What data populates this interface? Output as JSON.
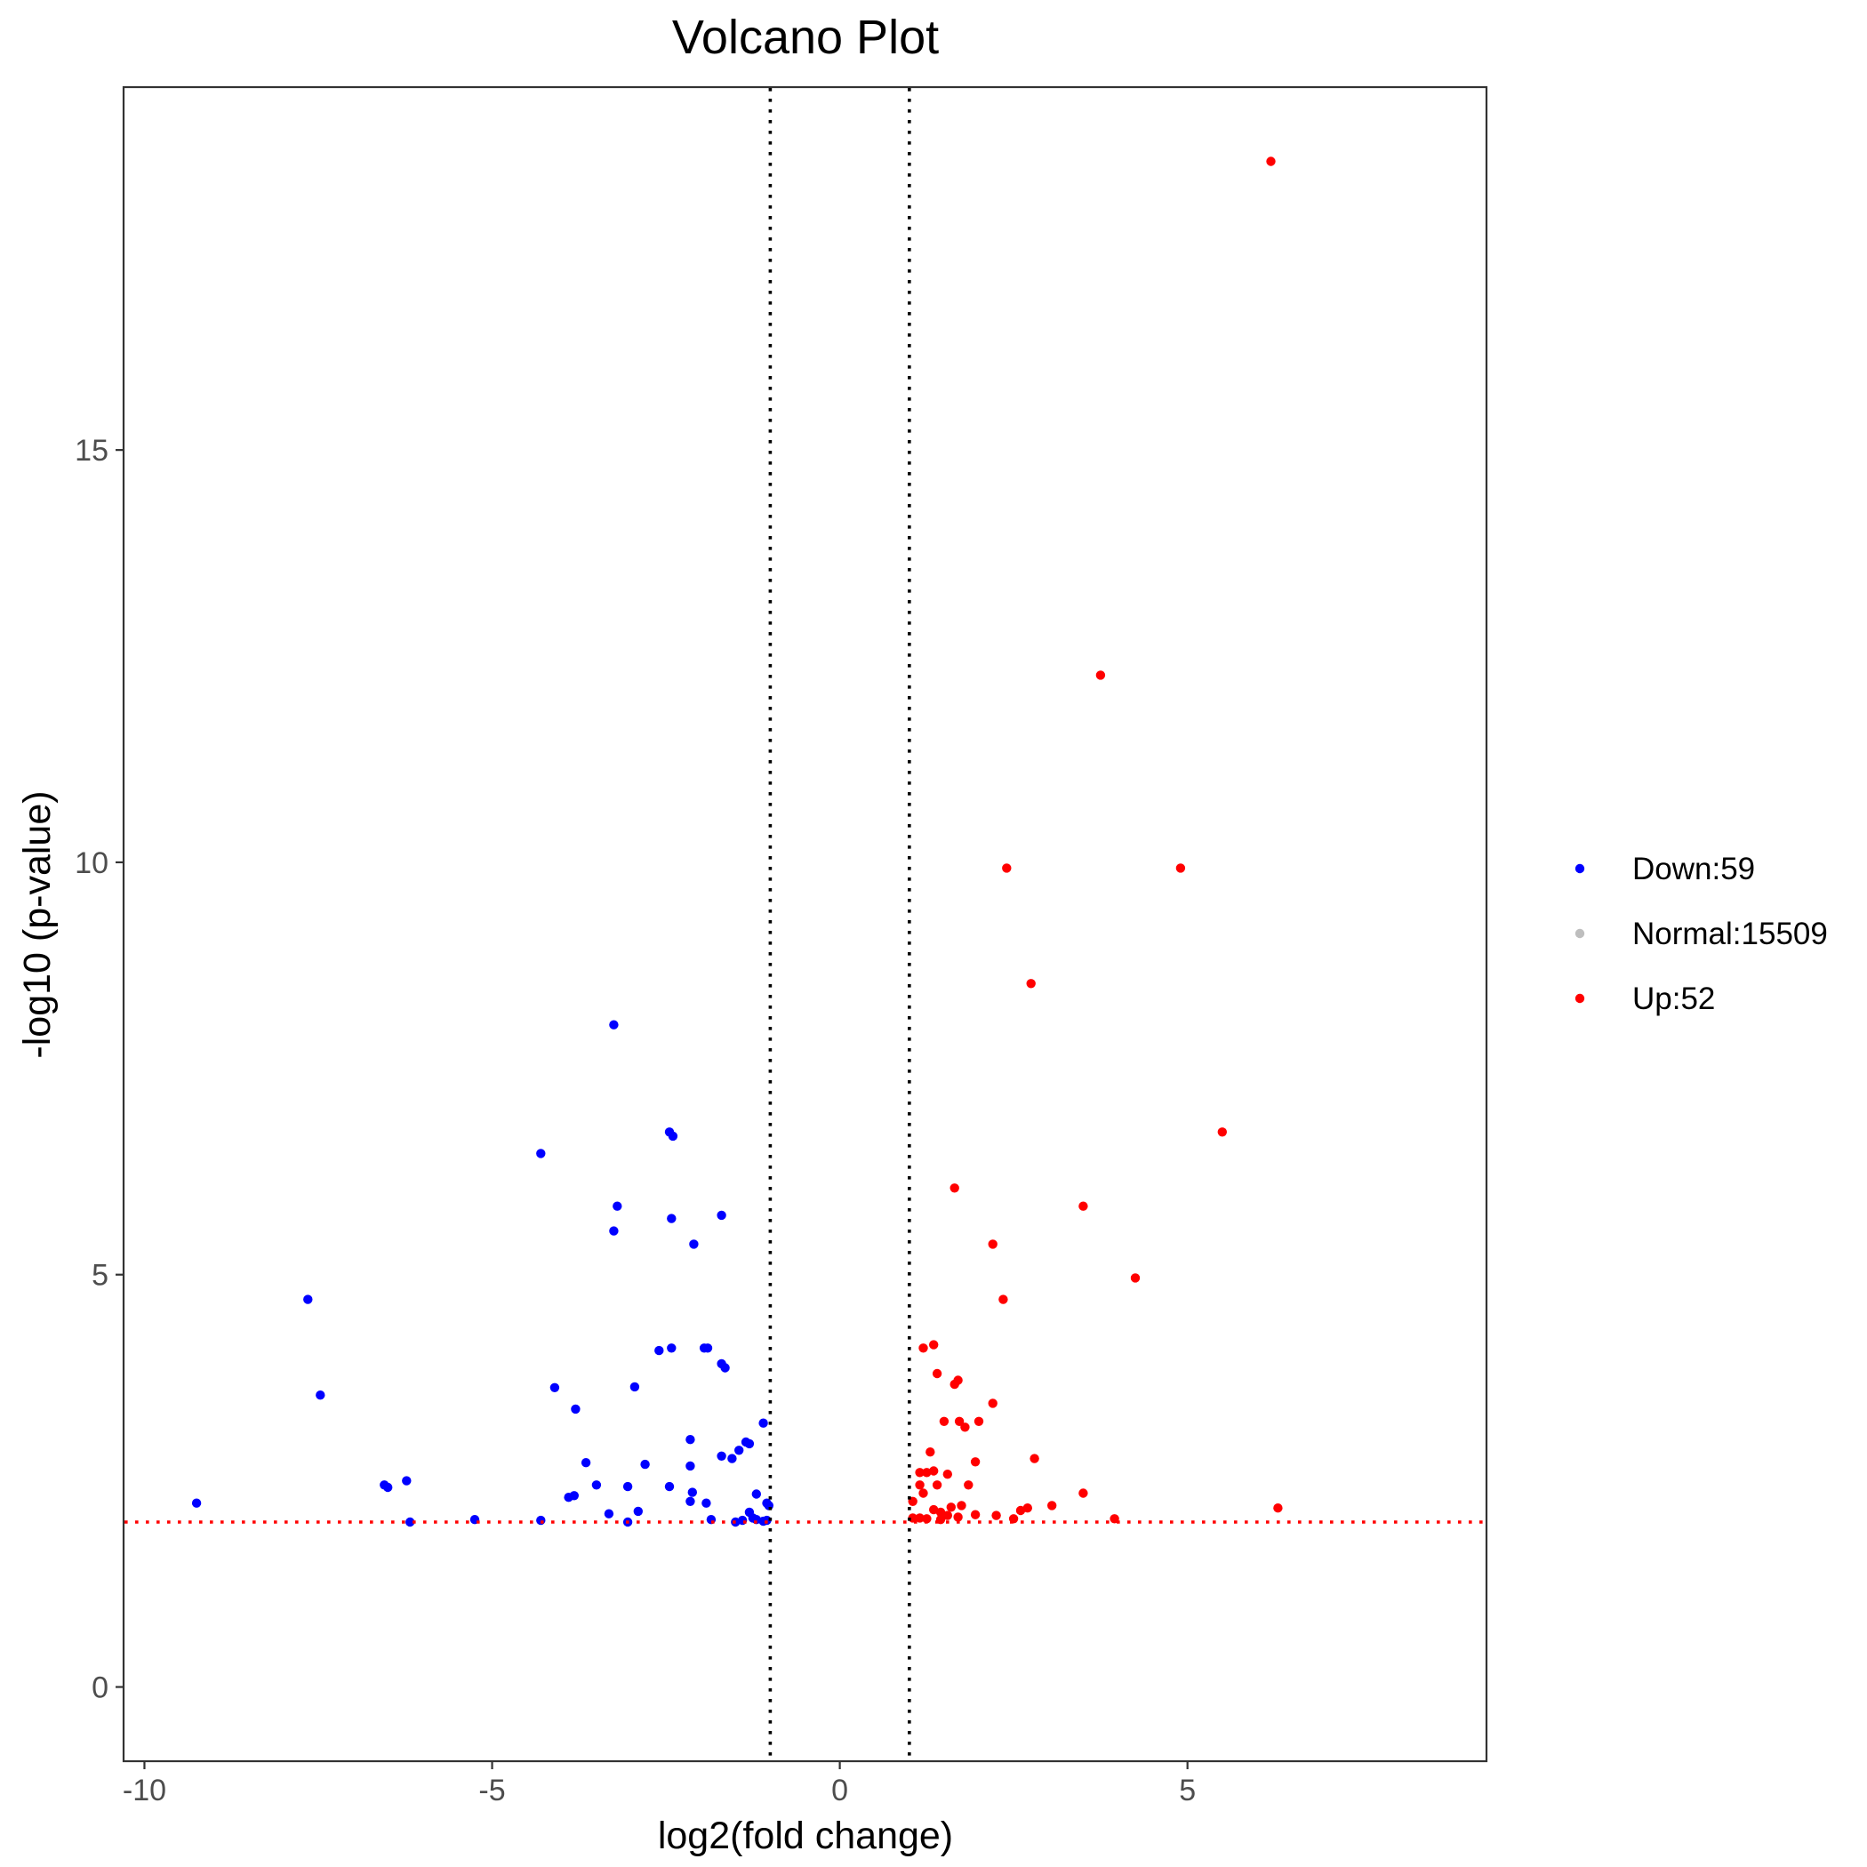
{
  "chart_data": {
    "type": "scatter",
    "title": "Volcano Plot",
    "xlabel": "log2(fold change)",
    "ylabel": "-log10 (p-value)",
    "xlim": [
      -10.3,
      9.3
    ],
    "ylim": [
      -0.9,
      19.4
    ],
    "x_ticks": [
      {
        "value": -10,
        "label": "-10"
      },
      {
        "value": -5,
        "label": "-5"
      },
      {
        "value": 0,
        "label": "0"
      },
      {
        "value": 5,
        "label": "5"
      }
    ],
    "y_ticks": [
      {
        "value": 0,
        "label": "0"
      },
      {
        "value": 5,
        "label": "5"
      },
      {
        "value": 10,
        "label": "10"
      },
      {
        "value": 15,
        "label": "15"
      }
    ],
    "grid": false,
    "legend_position": "right",
    "threshold_lines": {
      "vertical": [
        -1,
        1
      ],
      "vertical_color": "#000000",
      "horizontal": 2,
      "horizontal_color": "#ff0000",
      "style": "dotted"
    },
    "series": [
      {
        "name": "Down",
        "legend_label": "Down:59",
        "color": "#0000ff",
        "points": [
          [
            -9.25,
            2.23
          ],
          [
            -7.65,
            4.7
          ],
          [
            -7.47,
            3.54
          ],
          [
            -6.55,
            2.45
          ],
          [
            -6.5,
            2.42
          ],
          [
            -6.23,
            2.5
          ],
          [
            -6.18,
            2.0
          ],
          [
            -5.25,
            2.03
          ],
          [
            -4.3,
            6.47
          ],
          [
            -4.3,
            2.02
          ],
          [
            -4.1,
            3.63
          ],
          [
            -3.9,
            2.3
          ],
          [
            -3.8,
            3.37
          ],
          [
            -3.82,
            2.32
          ],
          [
            -3.65,
            2.72
          ],
          [
            -3.5,
            2.45
          ],
          [
            -3.32,
            2.1
          ],
          [
            -3.25,
            8.03
          ],
          [
            -3.25,
            5.53
          ],
          [
            -3.2,
            5.83
          ],
          [
            -3.05,
            2.43
          ],
          [
            -3.05,
            2.0
          ],
          [
            -2.95,
            3.64
          ],
          [
            -2.9,
            2.13
          ],
          [
            -2.8,
            2.7
          ],
          [
            -2.6,
            4.08
          ],
          [
            -2.45,
            2.43
          ],
          [
            -2.45,
            6.73
          ],
          [
            -2.4,
            6.68
          ],
          [
            -2.42,
            5.68
          ],
          [
            -2.42,
            4.11
          ],
          [
            -2.15,
            3.0
          ],
          [
            -2.15,
            2.25
          ],
          [
            -2.15,
            2.68
          ],
          [
            -2.12,
            2.36
          ],
          [
            -2.1,
            5.37
          ],
          [
            -1.95,
            4.11
          ],
          [
            -1.9,
            4.11
          ],
          [
            -1.92,
            2.23
          ],
          [
            -1.85,
            2.03
          ],
          [
            -1.7,
            2.8
          ],
          [
            -1.7,
            5.72
          ],
          [
            -1.7,
            3.92
          ],
          [
            -1.65,
            3.87
          ],
          [
            -1.55,
            2.77
          ],
          [
            -1.5,
            2.0
          ],
          [
            -1.45,
            2.87
          ],
          [
            -1.4,
            2.02
          ],
          [
            -1.35,
            2.97
          ],
          [
            -1.3,
            2.95
          ],
          [
            -1.3,
            2.12
          ],
          [
            -1.25,
            2.05
          ],
          [
            -1.2,
            2.34
          ],
          [
            -1.2,
            2.03
          ],
          [
            -1.1,
            3.2
          ],
          [
            -1.1,
            2.01
          ],
          [
            -1.05,
            2.02
          ],
          [
            -1.05,
            2.23
          ],
          [
            -1.02,
            2.2
          ]
        ]
      },
      {
        "name": "Normal",
        "legend_label": "Normal:15509",
        "color": "#bebebe",
        "points": []
      },
      {
        "name": "Up",
        "legend_label": "Up:52",
        "color": "#ff0000",
        "points": [
          [
            6.2,
            18.5
          ],
          [
            3.75,
            12.27
          ],
          [
            2.4,
            9.93
          ],
          [
            4.9,
            9.93
          ],
          [
            2.75,
            8.53
          ],
          [
            5.5,
            6.73
          ],
          [
            1.65,
            6.05
          ],
          [
            3.5,
            5.83
          ],
          [
            2.2,
            5.37
          ],
          [
            4.25,
            4.96
          ],
          [
            2.35,
            4.7
          ],
          [
            1.35,
            4.15
          ],
          [
            1.2,
            4.11
          ],
          [
            1.4,
            3.8
          ],
          [
            1.7,
            3.72
          ],
          [
            1.65,
            3.67
          ],
          [
            2.2,
            3.44
          ],
          [
            1.5,
            3.22
          ],
          [
            1.72,
            3.22
          ],
          [
            1.8,
            3.15
          ],
          [
            2.0,
            3.22
          ],
          [
            1.3,
            2.85
          ],
          [
            2.8,
            2.77
          ],
          [
            1.15,
            2.6
          ],
          [
            1.25,
            2.6
          ],
          [
            1.35,
            2.62
          ],
          [
            1.55,
            2.58
          ],
          [
            1.95,
            2.73
          ],
          [
            1.85,
            2.45
          ],
          [
            1.15,
            2.45
          ],
          [
            1.4,
            2.45
          ],
          [
            1.2,
            2.35
          ],
          [
            1.05,
            2.25
          ],
          [
            1.35,
            2.15
          ],
          [
            1.45,
            2.12
          ],
          [
            1.6,
            2.18
          ],
          [
            1.75,
            2.2
          ],
          [
            1.05,
            2.05
          ],
          [
            1.15,
            2.05
          ],
          [
            1.25,
            2.04
          ],
          [
            1.45,
            2.03
          ],
          [
            1.55,
            2.08
          ],
          [
            1.7,
            2.06
          ],
          [
            1.95,
            2.09
          ],
          [
            2.25,
            2.08
          ],
          [
            2.5,
            2.04
          ],
          [
            2.6,
            2.14
          ],
          [
            2.7,
            2.17
          ],
          [
            3.05,
            2.2
          ],
          [
            3.5,
            2.35
          ],
          [
            3.95,
            2.04
          ],
          [
            6.3,
            2.17
          ]
        ]
      }
    ]
  }
}
